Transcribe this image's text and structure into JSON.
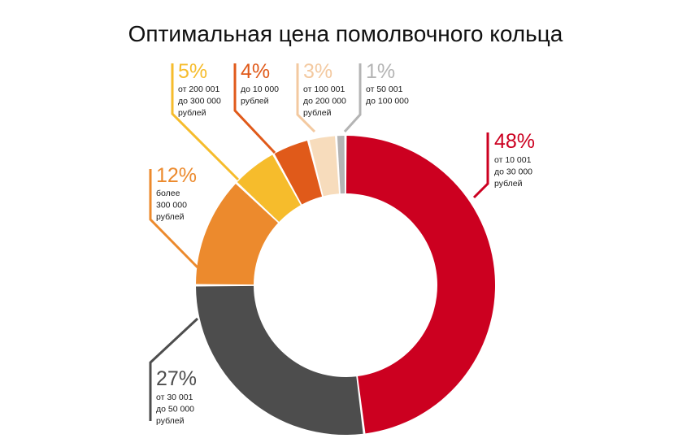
{
  "chart_data": {
    "type": "pie",
    "variant": "donut",
    "title": "Оптимальная цена помолвочного кольца",
    "slices": [
      {
        "key": "s48",
        "value": 48,
        "label": "48%",
        "desc": [
          "от 10 001",
          "до 30 000",
          "рублей"
        ],
        "color": "#cc0020",
        "pct_color": "#cc0020"
      },
      {
        "key": "s27",
        "value": 27,
        "label": "27%",
        "desc": [
          "от 30 001",
          "до 50 000",
          "рублей"
        ],
        "color": "#4d4d4d",
        "pct_color": "#4d4d4d"
      },
      {
        "key": "s12",
        "value": 12,
        "label": "12%",
        "desc": [
          "более",
          "300 000",
          "рублей"
        ],
        "color": "#ec8a2d",
        "pct_color": "#ec8a2d"
      },
      {
        "key": "s5",
        "value": 5,
        "label": "5%",
        "desc": [
          "от 200 001",
          "до 300 000",
          "рублей"
        ],
        "color": "#f6bc2c",
        "pct_color": "#f6bc2c"
      },
      {
        "key": "s4",
        "value": 4,
        "label": "4%",
        "desc": [
          "до 10 000",
          "рублей"
        ],
        "color": "#e05a1a",
        "pct_color": "#e05a1a"
      },
      {
        "key": "s3",
        "value": 3,
        "label": "3%",
        "desc": [
          "от 100 001",
          "до 200 000",
          "рублей"
        ],
        "color": "#f7dcbc",
        "pct_color": "#f3c9a0"
      },
      {
        "key": "s1",
        "value": 1,
        "label": "1%",
        "desc": [
          "от 50 001",
          "до 100 000"
        ],
        "color": "#b4b4b4",
        "pct_color": "#b4b4b4"
      }
    ]
  }
}
